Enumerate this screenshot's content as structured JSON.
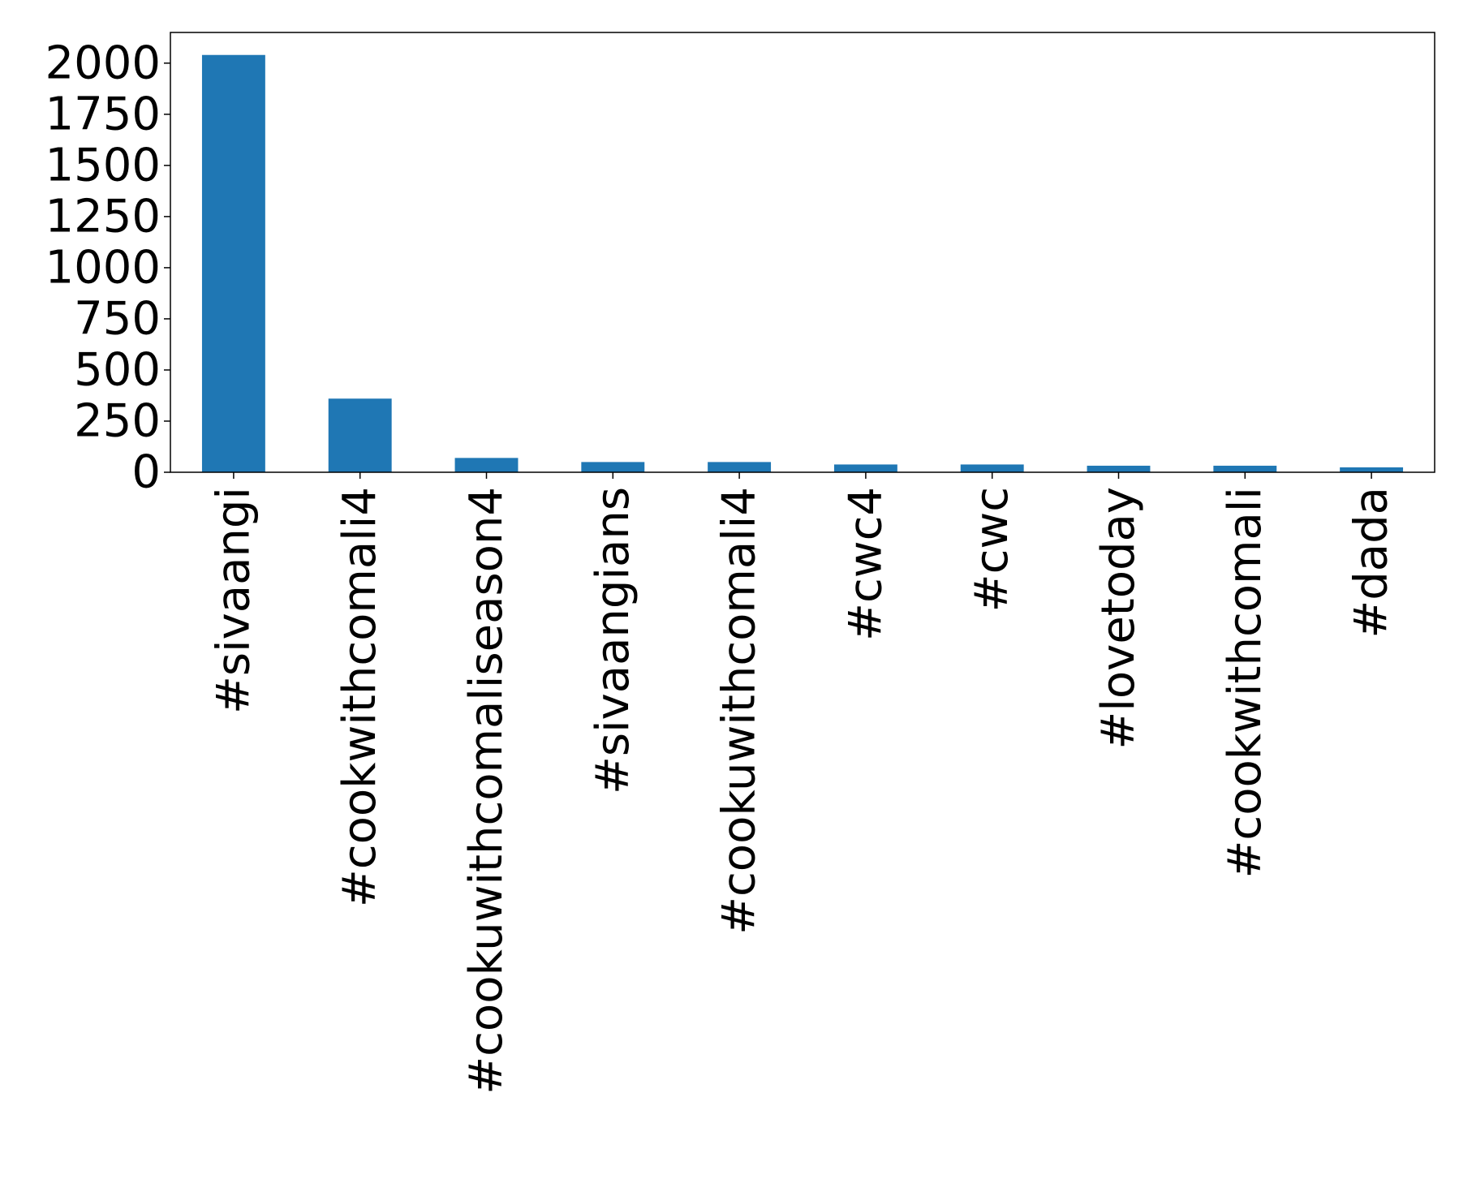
{
  "chart_data": {
    "type": "bar",
    "categories": [
      "#sivaangi",
      "#cookwithcomali4",
      "#cookuwithcomaliseason4",
      "#sivaangians",
      "#cookuwithcomali4",
      "#cwc4",
      "#cwc",
      "#lovetoday",
      "#cookwithcomali",
      "#dada"
    ],
    "values": [
      2040,
      360,
      70,
      50,
      50,
      38,
      38,
      32,
      32,
      24
    ],
    "title": "",
    "xlabel": "",
    "ylabel": "",
    "ylim": [
      0,
      2150
    ],
    "yticks": [
      0,
      250,
      500,
      750,
      1000,
      1250,
      1500,
      1750,
      2000
    ],
    "grid": false,
    "legend": "none",
    "bar_color": "#1f77b4"
  }
}
